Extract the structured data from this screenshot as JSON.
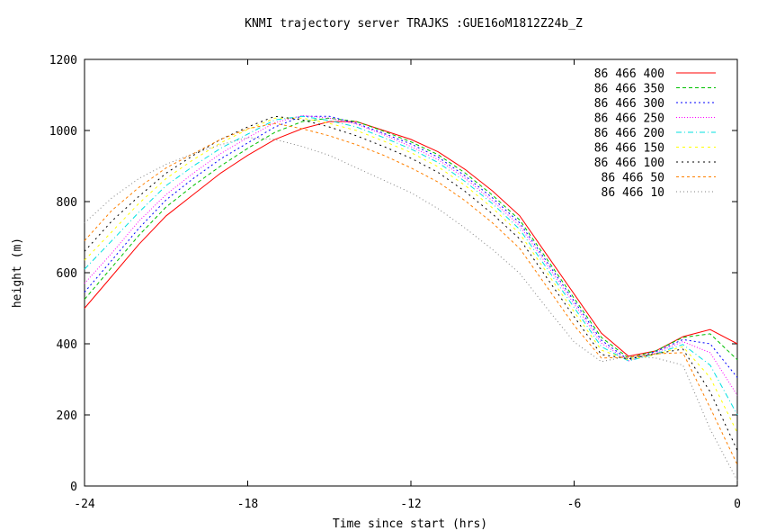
{
  "chart_data": {
    "type": "line",
    "title": "KNMI trajectory server TRAJKS :GUE16oM1812Z24b_Z",
    "xlabel": "Time since start (hrs)",
    "ylabel": "height (m)",
    "xlim": [
      -24,
      0
    ],
    "ylim": [
      0,
      1200
    ],
    "xticks": [
      -24,
      -18,
      -12,
      -6,
      0
    ],
    "xtick_labels": [
      "-24",
      "-18",
      "-12",
      "-6",
      "0"
    ],
    "yticks": [
      0,
      200,
      400,
      600,
      800,
      1000,
      1200
    ],
    "ytick_labels": [
      "0",
      "200",
      "400",
      "600",
      "800",
      "1000",
      "1200"
    ],
    "grid": false,
    "legend_position": "top-right",
    "x": [
      -24,
      -23,
      -22,
      -21,
      -20,
      -19,
      -18,
      -17,
      -16,
      -15,
      -14,
      -13,
      -12,
      -11,
      -10,
      -9,
      -8,
      -7,
      -6,
      -5,
      -4,
      -3,
      -2,
      -1,
      0
    ],
    "series": [
      {
        "name": "86 466 400",
        "color": "#ff0000",
        "dash": "",
        "values": [
          500,
          590,
          680,
          760,
          820,
          880,
          930,
          975,
          1005,
          1025,
          1025,
          1000,
          975,
          940,
          890,
          830,
          760,
          650,
          540,
          430,
          365,
          380,
          420,
          440,
          400
        ]
      },
      {
        "name": "86 466 350",
        "color": "#00c000",
        "dash": "4,3",
        "values": [
          525,
          615,
          705,
          785,
          845,
          900,
          950,
          995,
          1025,
          1035,
          1025,
          998,
          968,
          932,
          880,
          818,
          748,
          638,
          528,
          418,
          360,
          380,
          418,
          428,
          355
        ]
      },
      {
        "name": "86 466 300",
        "color": "#0000ff",
        "dash": "2,3",
        "values": [
          545,
          635,
          725,
          805,
          865,
          920,
          965,
          1010,
          1040,
          1040,
          1020,
          992,
          962,
          925,
          872,
          810,
          740,
          630,
          520,
          410,
          355,
          378,
          412,
          400,
          305
        ]
      },
      {
        "name": "86 466 250",
        "color": "#ff00ff",
        "dash": "1,2",
        "values": [
          570,
          655,
          745,
          820,
          880,
          935,
          980,
          1022,
          1042,
          1035,
          1018,
          988,
          955,
          918,
          865,
          802,
          732,
          622,
          512,
          402,
          352,
          375,
          406,
          375,
          255
        ]
      },
      {
        "name": "86 466 200",
        "color": "#00e0e0",
        "dash": "6,3,1,3",
        "values": [
          610,
          690,
          770,
          845,
          900,
          950,
          990,
          1030,
          1040,
          1028,
          1010,
          980,
          948,
          910,
          856,
          794,
          722,
          612,
          502,
          392,
          352,
          372,
          398,
          340,
          200
        ]
      },
      {
        "name": "86 466 150",
        "color": "#ffff00",
        "dash": "3,4",
        "values": [
          635,
          715,
          795,
          865,
          918,
          965,
          1003,
          1035,
          1035,
          1020,
          1000,
          970,
          938,
          898,
          845,
          782,
          710,
          600,
          490,
          382,
          355,
          370,
          392,
          305,
          150
        ]
      },
      {
        "name": "86 466 100",
        "color": "#000000",
        "dash": "2,4",
        "values": [
          660,
          745,
          815,
          880,
          930,
          975,
          1010,
          1040,
          1030,
          1010,
          985,
          955,
          922,
          882,
          828,
          765,
          695,
          585,
          476,
          370,
          358,
          372,
          385,
          265,
          100
        ]
      },
      {
        "name": "86 466 50",
        "color": "#ff8000",
        "dash": "3,3",
        "values": [
          690,
          775,
          840,
          895,
          935,
          975,
          1005,
          1020,
          1005,
          985,
          960,
          930,
          895,
          855,
          802,
          740,
          668,
          560,
          452,
          360,
          362,
          372,
          375,
          220,
          60
        ]
      },
      {
        "name": "86 466 10",
        "color": "#808080",
        "dash": "1,3",
        "values": [
          740,
          810,
          865,
          905,
          935,
          960,
          980,
          975,
          955,
          930,
          895,
          860,
          825,
          780,
          725,
          665,
          598,
          500,
          405,
          350,
          365,
          360,
          340,
          160,
          15
        ]
      }
    ]
  }
}
